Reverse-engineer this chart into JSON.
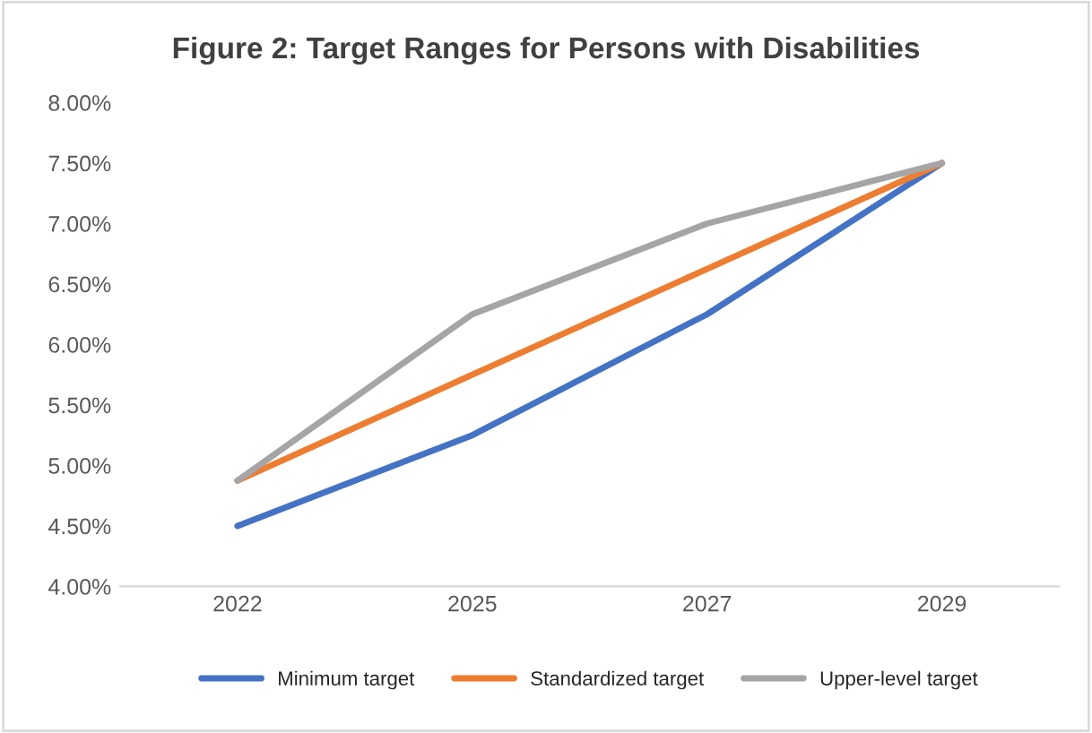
{
  "chart_data": {
    "type": "line",
    "title": "Figure 2: Target Ranges for Persons with Disabilities",
    "categories": [
      "2022",
      "2025",
      "2027",
      "2029"
    ],
    "series": [
      {
        "name": "Minimum target",
        "color": "#4472c4",
        "values": [
          4.5,
          5.25,
          6.25,
          7.5
        ]
      },
      {
        "name": "Standardized target",
        "color": "#ed7d31",
        "values": [
          4.875,
          5.75,
          6.625,
          7.5
        ]
      },
      {
        "name": "Upper-level target",
        "color": "#a5a5a5",
        "values": [
          4.875,
          6.25,
          7.0,
          7.5
        ]
      }
    ],
    "ylim": [
      4.0,
      8.0
    ],
    "yticks": [
      {
        "value": 4.0,
        "label": "4.00%"
      },
      {
        "value": 4.5,
        "label": "4.50%"
      },
      {
        "value": 5.0,
        "label": "5.00%"
      },
      {
        "value": 5.5,
        "label": "5.50%"
      },
      {
        "value": 6.0,
        "label": "6.00%"
      },
      {
        "value": 6.5,
        "label": "6.50%"
      },
      {
        "value": 7.0,
        "label": "7.00%"
      },
      {
        "value": 7.5,
        "label": "7.50%"
      },
      {
        "value": 8.0,
        "label": "8.00%"
      }
    ],
    "grid": false,
    "legend": "bottom",
    "marker": "none",
    "line_style": "solid"
  }
}
